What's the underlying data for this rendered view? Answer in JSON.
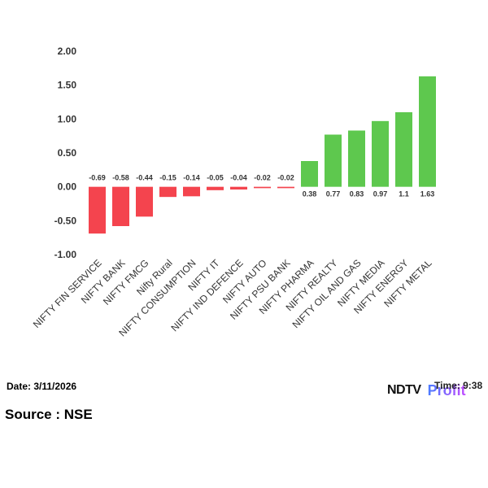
{
  "chart_data": {
    "type": "bar",
    "categories": [
      "NIFTY FIN SERVICE",
      "NIFTY BANK",
      "NIFTY FMCG",
      "Nifty Rural",
      "NIFTY CONSUMPTION",
      "NIFTY IT",
      "NIFTY IND DEFENCE",
      "NIFTY AUTO",
      "NIFTY PSU BANK",
      "NIFTY PHARMA",
      "NIFTY REALTY",
      "NIFTY OIL AND GAS",
      "NIFTY MEDIA",
      "NIFTY ENERGY",
      "NIFTY METAL"
    ],
    "values": [
      -0.69,
      -0.58,
      -0.44,
      -0.15,
      -0.14,
      -0.05,
      -0.04,
      -0.02,
      -0.02,
      0.38,
      0.77,
      0.83,
      0.97,
      1.1,
      1.63
    ],
    "value_labels": [
      "-0.69",
      "-0.58",
      "-0.44",
      "-0.15",
      "-0.14",
      "-0.05",
      "-0.04",
      "-0.02",
      "-0.02",
      "0.38",
      "0.77",
      "0.83",
      "0.97",
      "1.1",
      "1.63"
    ],
    "ylim": [
      -1.0,
      2.0
    ],
    "yticks": [
      "2.00",
      "1.50",
      "1.00",
      "0.50",
      "0.00",
      "-0.50",
      "-1.00"
    ],
    "ytick_values": [
      2.0,
      1.5,
      1.0,
      0.5,
      0.0,
      -0.5,
      -1.0
    ],
    "grid": false,
    "colors": {
      "positive": "#5ec84e",
      "negative": "#f4444e"
    }
  },
  "footer": {
    "date": "Date: 3/11/2026",
    "source": "Source : NSE",
    "brand": "NDTV",
    "brand_sub": "Profit",
    "time": "Time: 9:38"
  }
}
